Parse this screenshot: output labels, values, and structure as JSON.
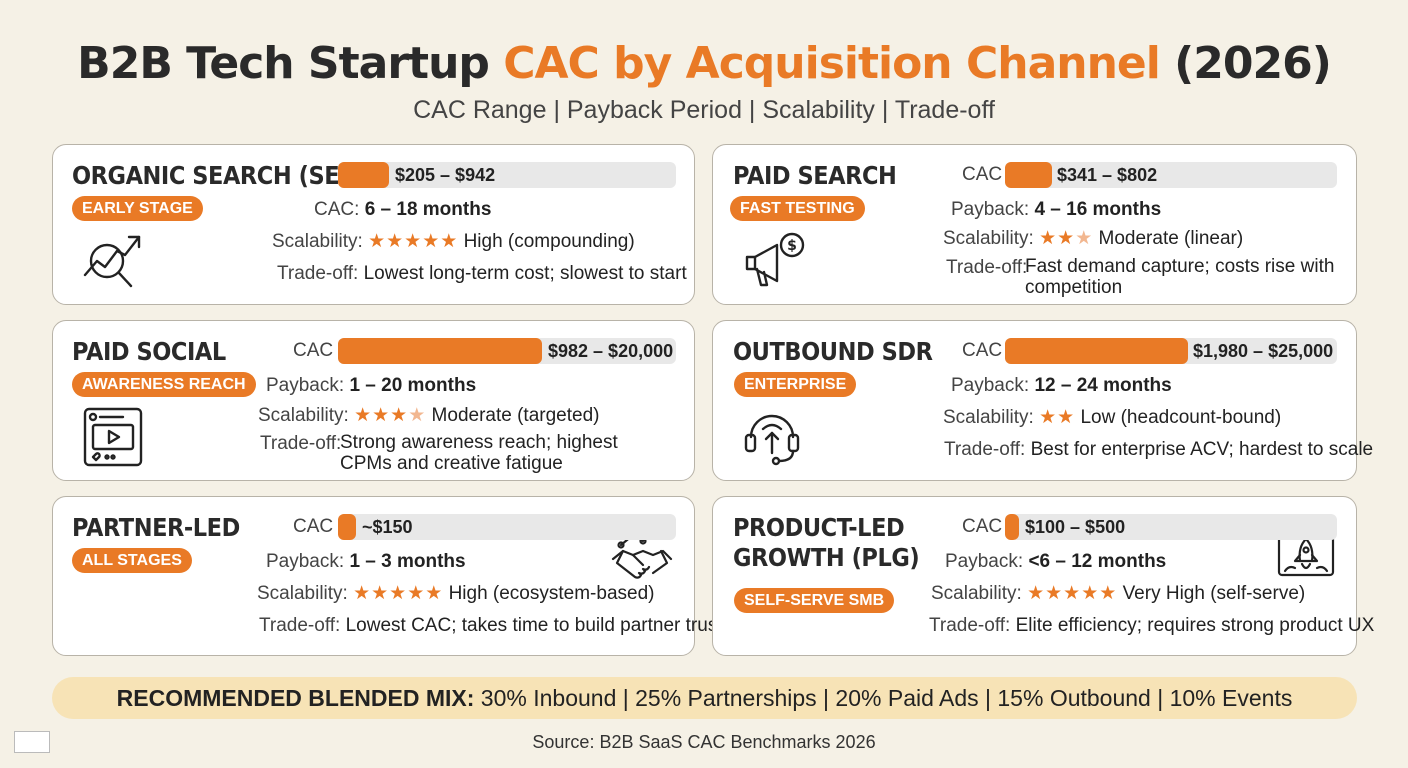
{
  "header": {
    "title_pre": "B2B Tech Startup ",
    "title_accent": "CAC by Acquisition Channel",
    "title_post": " (2026)",
    "subtitle": "CAC Range | Payback Period | Scalability | Trade-off"
  },
  "colors": {
    "accent": "#e97a26",
    "background": "#f5f1e6",
    "mix_bg": "#f7e3b6"
  },
  "cards": {
    "seo": {
      "title": "ORGANIC SEARCH (SEO)",
      "badge": "EARLY STAGE",
      "icon": "growth-chart-magnifier-icon",
      "cac_value": "$205 – $942",
      "cac_bar_fraction": 0.15,
      "payback_label": "CAC:",
      "payback_value": "6 – 18 months",
      "scalability_label": "Scalability:",
      "stars": 5,
      "scalability_value": "High (compounding)",
      "tradeoff_label": "Trade-off:",
      "tradeoff_value": "Lowest long-term cost; slowest to start"
    },
    "paid_search": {
      "title": "PAID SEARCH",
      "badge": "FAST TESTING",
      "icon": "megaphone-dollar-icon",
      "cac_label": "CAC",
      "cac_value": "$341 – $802",
      "cac_bar_fraction": 0.14,
      "payback_label": "Payback:",
      "payback_value": "4 – 16 months",
      "scalability_label": "Scalability:",
      "stars": 3,
      "stars_filled": 2.5,
      "scalability_value": "Moderate (linear)",
      "tradeoff_label": "Trade-off:",
      "tradeoff_value": "Fast demand capture; costs rise with competition"
    },
    "paid_social": {
      "title": "PAID SOCIAL",
      "badge": "AWARENESS REACH",
      "icon": "social-video-post-icon",
      "cac_label": "CAC",
      "cac_value": "$982 – $20,000",
      "cac_bar_fraction": 0.6,
      "payback_label": "Payback:",
      "payback_value": "1 – 20 months",
      "scalability_label": "Scalability:",
      "stars": 4,
      "stars_filled": 3.5,
      "scalability_value": "Moderate (targeted)",
      "tradeoff_label": "Trade-off:",
      "tradeoff_value": "Strong awareness reach; highest CPMs and creative fatigue"
    },
    "outbound": {
      "title": "OUTBOUND SDR",
      "badge": "ENTERPRISE",
      "icon": "headset-icon",
      "cac_label": "CAC",
      "cac_value": "$1,980 – $25,000",
      "cac_bar_fraction": 0.55,
      "payback_label": "Payback:",
      "payback_value": "12 – 24 months",
      "scalability_label": "Scalability:",
      "stars": 2,
      "scalability_value": "Low (headcount-bound)",
      "tradeoff_label": "Trade-off:",
      "tradeoff_value": "Best for enterprise ACV; hardest to scale"
    },
    "partner": {
      "title": "PARTNER-LED",
      "badge": "ALL STAGES",
      "icon": "handshake-icon",
      "cac_label": "CAC",
      "cac_value": "~$150",
      "cac_bar_fraction": 0.05,
      "payback_label": "Payback:",
      "payback_value": "1 – 3 months",
      "scalability_label": "Scalability:",
      "stars": 5,
      "scalability_value": "High (ecosystem-based)",
      "tradeoff_label": "Trade-off:",
      "tradeoff_value": "Lowest CAC; takes time to build partner trust"
    },
    "plg": {
      "title_line1": "PRODUCT-LED",
      "title_line2": "GROWTH (PLG)",
      "badge": "SELF-SERVE SMB",
      "icon": "rocket-browser-icon",
      "cac_label": "CAC",
      "cac_value": "$100 – $500",
      "cac_bar_fraction": 0.03,
      "payback_label": "Payback:",
      "payback_value": "<6 – 12 months",
      "scalability_label": "Scalability:",
      "stars": 5,
      "scalability_value": "Very High (self-serve)",
      "tradeoff_label": "Trade-off:",
      "tradeoff_value": "Elite efficiency; requires strong product UX"
    }
  },
  "mix": {
    "label": "RECOMMENDED BLENDED MIX:",
    "value": " 30% Inbound | 25% Partnerships | 20% Paid Ads | 15% Outbound | 10% Events"
  },
  "source": "Source: B2B SaaS CAC Benchmarks 2026"
}
